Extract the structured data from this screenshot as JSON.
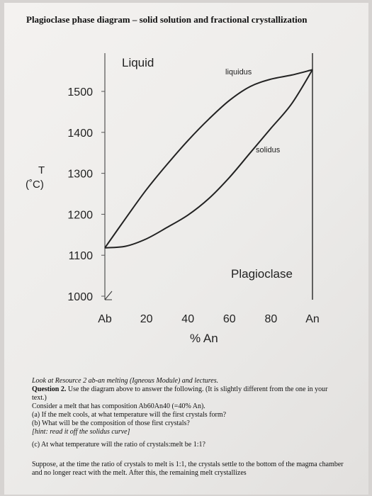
{
  "title": "Plagioclase phase diagram – solid solution and fractional crystallization",
  "chart_data": {
    "type": "line",
    "ylabel_top": "T",
    "ylabel_bottom": "(˚C)",
    "xlabel": "% An",
    "x_tick_labels": [
      "Ab",
      "20",
      "40",
      "60",
      "80",
      "An"
    ],
    "x_ticks": [
      0,
      20,
      40,
      60,
      80,
      100
    ],
    "y_tick_labels": [
      "1500",
      "1400",
      "1300",
      "1200",
      "1100",
      "1000"
    ],
    "y_ticks": [
      1500,
      1400,
      1300,
      1200,
      1100,
      1000
    ],
    "xlim": [
      0,
      100
    ],
    "ylim": [
      1000,
      1560
    ],
    "region_labels": {
      "liquid": "Liquid",
      "plagioclase": "Plagioclase"
    },
    "series": [
      {
        "name": "liquidus",
        "x": [
          0,
          10,
          20,
          30,
          40,
          50,
          60,
          70,
          80,
          90,
          100
        ],
        "y": [
          1118,
          1190,
          1260,
          1322,
          1380,
          1432,
          1478,
          1512,
          1530,
          1540,
          1553
        ]
      },
      {
        "name": "solidus",
        "x": [
          0,
          10,
          20,
          30,
          40,
          50,
          60,
          70,
          80,
          90,
          100
        ],
        "y": [
          1118,
          1122,
          1140,
          1168,
          1198,
          1238,
          1290,
          1350,
          1410,
          1470,
          1553
        ]
      }
    ]
  },
  "text": {
    "line1": "Look at Resource 2 ab-an melting (Igneous Module) and lectures.",
    "q_label": "Question 2.",
    "q_text": " Use the diagram above to answer the following. (It is slightly different from the one in your text.)",
    "line3": "Consider a melt that has composition Ab60An40 (=40% An).",
    "line4": "(a) If the melt cools, at what temperature will the first crystals form?",
    "line5": "(b) What will be the composition of those first crystals?",
    "line6": "[hint: read it off the solidus curve]",
    "line7": "(c) At what temperature will the ratio of crystals:melt be 1:1?",
    "line8": "Suppose, at the time the ratio of crystals to melt is 1:1, the crystals settle to the bottom of the magma chamber and no longer react with the melt. After this, the remaining melt crystallizes"
  }
}
